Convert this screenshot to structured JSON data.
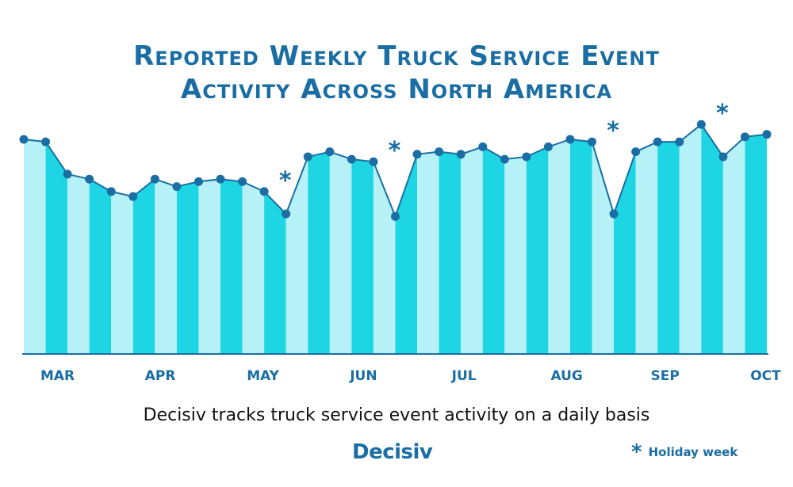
{
  "title_line1": "Reported Weekly Truck Service Event",
  "title_line2": "Activity Across North America",
  "footnote": "Decisiv tracks truck service event activity on a daily basis",
  "logo": "Decisiv",
  "legend": {
    "symbol": "*",
    "label": "Holiday week"
  },
  "colors": {
    "title": "#1a6ea3",
    "bar_dark": "#1ed6e3",
    "bar_light": "#b5f1f6",
    "line": "#1a6ea3",
    "marker": "#1a6ea3"
  },
  "chart_data": {
    "type": "area",
    "title": "Reported Weekly Truck Service Event Activity Across North America",
    "month_labels": [
      "MAR",
      "APR",
      "MAY",
      "JUN",
      "JUL",
      "AUG",
      "SEP",
      "OCT"
    ],
    "month_label_weeks": [
      1,
      5.7,
      10.4,
      15,
      19.6,
      24.3,
      28.8,
      33.4
    ],
    "values": [
      86,
      85,
      72,
      70,
      65,
      63,
      70,
      67,
      69,
      70,
      69,
      65,
      56,
      79,
      81,
      78,
      77,
      55,
      80,
      81,
      80,
      83,
      78,
      79,
      83,
      86,
      85,
      56,
      81,
      85,
      85,
      92,
      79,
      87,
      88
    ],
    "holiday_weeks": [
      12,
      17,
      27,
      32
    ],
    "ylim": [
      0,
      100
    ],
    "grid": false,
    "legend_position": "bottom-right"
  }
}
